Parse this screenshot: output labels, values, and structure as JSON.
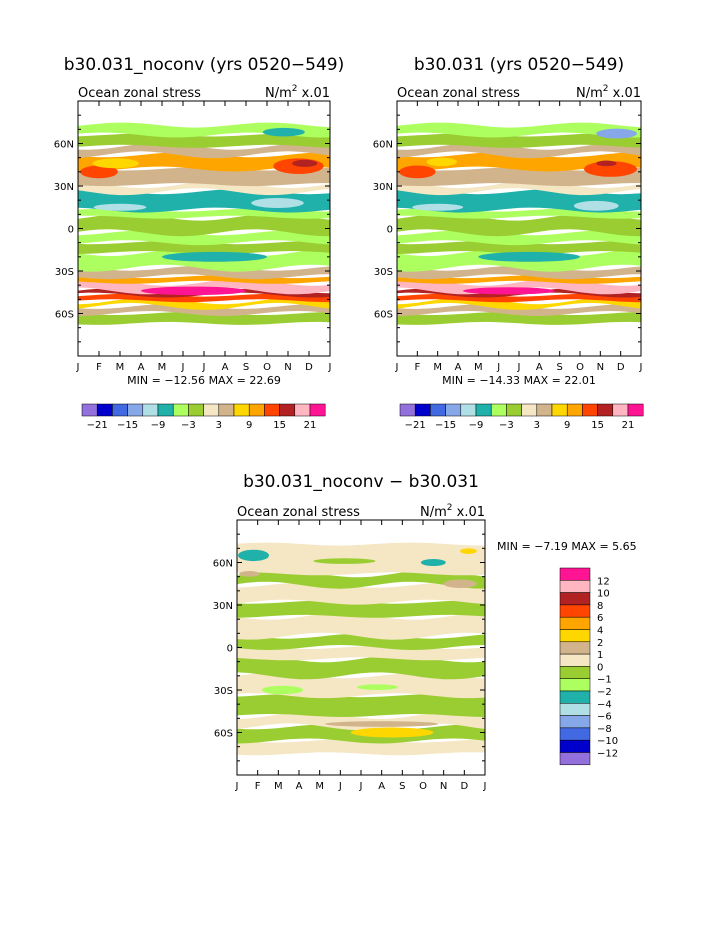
{
  "chart_data": [
    {
      "type": "heatmap",
      "title": "b30.031_noconv (yrs 0520−549)",
      "subtitle": "Ocean zonal stress",
      "units_base": "N/m",
      "units_exp": "2",
      "units_scale": "x.01",
      "x_ticks": [
        "J",
        "F",
        "M",
        "A",
        "M",
        "J",
        "J",
        "A",
        "S",
        "O",
        "N",
        "D",
        "J"
      ],
      "y_ticks": [
        "60N",
        "30N",
        "0",
        "30S",
        "60S"
      ],
      "y_tick_values": [
        60,
        30,
        0,
        -30,
        -60
      ],
      "ylim": [
        -90,
        90
      ],
      "xlim": [
        0,
        12
      ],
      "min_label": "MIN =",
      "min_value": "−12.56",
      "max_label": "MAX =",
      "max_value": "22.69",
      "colorbar_labels": [
        "−21",
        "−15",
        "−9",
        "−3",
        "3",
        "9",
        "15",
        "21"
      ],
      "colorbar_colors": [
        "#9370DB",
        "#0000CD",
        "#4169E1",
        "#87A8E8",
        "#B0E0E6",
        "#20B2AA",
        "#ADFF5F",
        "#9ACD32",
        "#F5E6C4",
        "#D2B48C",
        "#FFD700",
        "#FFA500",
        "#FF4500",
        "#B22222",
        "#FFB6C1",
        "#FF1493"
      ],
      "bands": [
        {
          "lat": [
            -67,
            -60
          ],
          "color": "#9ACD32"
        },
        {
          "lat": [
            -60,
            -55
          ],
          "color": "#D2B48C"
        },
        {
          "lat": [
            -55,
            -51
          ],
          "color": "#FFD700"
        },
        {
          "lat": [
            -51,
            -47
          ],
          "color": "#FF4500"
        },
        {
          "lat": [
            -47,
            -44
          ],
          "color": "#B22222"
        },
        {
          "lat": [
            -44,
            -38
          ],
          "color": "#FFB6C1"
        },
        {
          "lat": [
            -38,
            -34
          ],
          "color": "#FFA500"
        },
        {
          "lat": [
            -34,
            -28
          ],
          "color": "#D2B48C"
        },
        {
          "lat": [
            -28,
            -17
          ],
          "color": "#ADFF5F"
        },
        {
          "lat": [
            -17,
            -10
          ],
          "color": "#9ACD32"
        },
        {
          "lat": [
            -10,
            -3
          ],
          "color": "#ADFF5F"
        },
        {
          "lat": [
            -3,
            8
          ],
          "color": "#9ACD32"
        },
        {
          "lat": [
            8,
            13
          ],
          "color": "#ADFF5F"
        },
        {
          "lat": [
            13,
            26
          ],
          "color": "#20B2AA"
        },
        {
          "lat": [
            26,
            31
          ],
          "color": "#F5E6C4"
        },
        {
          "lat": [
            31,
            42
          ],
          "color": "#D2B48C"
        },
        {
          "lat": [
            42,
            52
          ],
          "color": "#FFA500"
        },
        {
          "lat": [
            52,
            58
          ],
          "color": "#D2B48C"
        },
        {
          "lat": [
            58,
            66
          ],
          "color": "#9ACD32"
        },
        {
          "lat": [
            66,
            73
          ],
          "color": "#ADFF5F"
        }
      ],
      "features": [
        {
          "month": 5.5,
          "lat": -44,
          "w": 5,
          "h": 6,
          "color": "#FF1493"
        },
        {
          "month": 1.0,
          "lat": 40,
          "w": 1.8,
          "h": 9,
          "color": "#FF4500"
        },
        {
          "month": 1.8,
          "lat": 46,
          "w": 2.2,
          "h": 7,
          "color": "#FFD700"
        },
        {
          "month": 10.5,
          "lat": 44,
          "w": 2.4,
          "h": 11,
          "color": "#FF4500"
        },
        {
          "month": 10.8,
          "lat": 46,
          "w": 1.2,
          "h": 5,
          "color": "#B22222"
        },
        {
          "month": 9.8,
          "lat": 68,
          "w": 2.0,
          "h": 6,
          "color": "#20B2AA"
        },
        {
          "month": 9.5,
          "lat": 18,
          "w": 2.5,
          "h": 7,
          "color": "#B0E0E6"
        },
        {
          "month": 6.5,
          "lat": -20,
          "w": 5.0,
          "h": 7,
          "color": "#20B2AA"
        },
        {
          "month": 2.0,
          "lat": 15,
          "w": 2.5,
          "h": 5,
          "color": "#B0E0E6"
        }
      ]
    },
    {
      "type": "heatmap",
      "title": "b30.031 (yrs 0520−549)",
      "subtitle": "Ocean zonal stress",
      "units_base": "N/m",
      "units_exp": "2",
      "units_scale": "x.01",
      "x_ticks": [
        "J",
        "F",
        "M",
        "A",
        "M",
        "J",
        "J",
        "A",
        "S",
        "O",
        "N",
        "D",
        "J"
      ],
      "y_ticks": [
        "60N",
        "30N",
        "0",
        "30S",
        "60S"
      ],
      "y_tick_values": [
        60,
        30,
        0,
        -30,
        -60
      ],
      "ylim": [
        -90,
        90
      ],
      "xlim": [
        0,
        12
      ],
      "min_label": "MIN =",
      "min_value": "−14.33",
      "max_label": "MAX =",
      "max_value": "22.01",
      "colorbar_labels": [
        "−21",
        "−15",
        "−9",
        "−3",
        "3",
        "9",
        "15",
        "21"
      ],
      "colorbar_colors": [
        "#9370DB",
        "#0000CD",
        "#4169E1",
        "#87A8E8",
        "#B0E0E6",
        "#20B2AA",
        "#ADFF5F",
        "#9ACD32",
        "#F5E6C4",
        "#D2B48C",
        "#FFD700",
        "#FFA500",
        "#FF4500",
        "#B22222",
        "#FFB6C1",
        "#FF1493"
      ],
      "bands": [
        {
          "lat": [
            -67,
            -60
          ],
          "color": "#9ACD32"
        },
        {
          "lat": [
            -60,
            -55
          ],
          "color": "#D2B48C"
        },
        {
          "lat": [
            -55,
            -51
          ],
          "color": "#FFD700"
        },
        {
          "lat": [
            -51,
            -47
          ],
          "color": "#FF4500"
        },
        {
          "lat": [
            -47,
            -44
          ],
          "color": "#B22222"
        },
        {
          "lat": [
            -44,
            -38
          ],
          "color": "#FFB6C1"
        },
        {
          "lat": [
            -38,
            -34
          ],
          "color": "#FFA500"
        },
        {
          "lat": [
            -34,
            -28
          ],
          "color": "#D2B48C"
        },
        {
          "lat": [
            -28,
            -17
          ],
          "color": "#ADFF5F"
        },
        {
          "lat": [
            -17,
            -10
          ],
          "color": "#9ACD32"
        },
        {
          "lat": [
            -10,
            -3
          ],
          "color": "#ADFF5F"
        },
        {
          "lat": [
            -3,
            8
          ],
          "color": "#9ACD32"
        },
        {
          "lat": [
            8,
            13
          ],
          "color": "#ADFF5F"
        },
        {
          "lat": [
            13,
            26
          ],
          "color": "#20B2AA"
        },
        {
          "lat": [
            26,
            31
          ],
          "color": "#F5E6C4"
        },
        {
          "lat": [
            31,
            42
          ],
          "color": "#D2B48C"
        },
        {
          "lat": [
            42,
            52
          ],
          "color": "#FFA500"
        },
        {
          "lat": [
            52,
            58
          ],
          "color": "#D2B48C"
        },
        {
          "lat": [
            58,
            66
          ],
          "color": "#9ACD32"
        },
        {
          "lat": [
            66,
            73
          ],
          "color": "#ADFF5F"
        }
      ],
      "features": [
        {
          "month": 5.5,
          "lat": -44,
          "w": 4.5,
          "h": 5,
          "color": "#FF1493"
        },
        {
          "month": 1.0,
          "lat": 40,
          "w": 1.8,
          "h": 9,
          "color": "#FF4500"
        },
        {
          "month": 2.2,
          "lat": 47,
          "w": 1.5,
          "h": 6,
          "color": "#FFD700"
        },
        {
          "month": 10.5,
          "lat": 42,
          "w": 2.6,
          "h": 11,
          "color": "#FF4500"
        },
        {
          "month": 10.3,
          "lat": 46,
          "w": 1.0,
          "h": 4,
          "color": "#B22222"
        },
        {
          "month": 10.8,
          "lat": 67,
          "w": 2.0,
          "h": 7,
          "color": "#87A8E8"
        },
        {
          "month": 9.8,
          "lat": 16,
          "w": 2.2,
          "h": 7,
          "color": "#B0E0E6"
        },
        {
          "month": 6.5,
          "lat": -20,
          "w": 5.0,
          "h": 7,
          "color": "#20B2AA"
        },
        {
          "month": 2.0,
          "lat": 15,
          "w": 2.5,
          "h": 5,
          "color": "#B0E0E6"
        }
      ]
    },
    {
      "type": "heatmap",
      "title": "b30.031_noconv − b30.031",
      "subtitle": "Ocean zonal stress",
      "units_base": "N/m",
      "units_exp": "2",
      "units_scale": "x.01",
      "x_ticks": [
        "J",
        "F",
        "M",
        "A",
        "M",
        "J",
        "J",
        "A",
        "S",
        "O",
        "N",
        "D",
        "J"
      ],
      "y_ticks": [
        "60N",
        "30N",
        "0",
        "30S",
        "60S"
      ],
      "y_tick_values": [
        60,
        30,
        0,
        -30,
        -60
      ],
      "ylim": [
        -90,
        90
      ],
      "xlim": [
        0,
        12
      ],
      "min_label": "MIN =",
      "min_value": "−7.19",
      "max_label": "MAX =",
      "max_value": "5.65",
      "colorbar_labels": [
        "12",
        "10",
        "8",
        "6",
        "4",
        "2",
        "1",
        "0",
        "−1",
        "−2",
        "−4",
        "−6",
        "−8",
        "−10",
        "−12"
      ],
      "colorbar_colors": [
        "#FF1493",
        "#FFB6C1",
        "#B22222",
        "#FF4500",
        "#FFA500",
        "#FFD700",
        "#D2B48C",
        "#F5E6C4",
        "#9ACD32",
        "#ADFF5F",
        "#20B2AA",
        "#B0E0E6",
        "#87A8E8",
        "#4169E1",
        "#0000CD",
        "#9370DB"
      ],
      "bands": [
        {
          "lat": [
            -75,
            -66
          ],
          "color": "#F5E6C4"
        },
        {
          "lat": [
            -66,
            -56
          ],
          "color": "#9ACD32"
        },
        {
          "lat": [
            -56,
            -48
          ],
          "color": "#F5E6C4"
        },
        {
          "lat": [
            -48,
            -34
          ],
          "color": "#9ACD32"
        },
        {
          "lat": [
            -34,
            -20
          ],
          "color": "#F5E6C4"
        },
        {
          "lat": [
            -20,
            -8
          ],
          "color": "#9ACD32"
        },
        {
          "lat": [
            -8,
            0
          ],
          "color": "#F5E6C4"
        },
        {
          "lat": [
            0,
            8
          ],
          "color": "#9ACD32"
        },
        {
          "lat": [
            8,
            22
          ],
          "color": "#F5E6C4"
        },
        {
          "lat": [
            22,
            32
          ],
          "color": "#9ACD32"
        },
        {
          "lat": [
            32,
            44
          ],
          "color": "#F5E6C4"
        },
        {
          "lat": [
            44,
            52
          ],
          "color": "#9ACD32"
        },
        {
          "lat": [
            52,
            73
          ],
          "color": "#F5E6C4"
        }
      ],
      "features": [
        {
          "month": 7.5,
          "lat": -60,
          "w": 4.0,
          "h": 7,
          "color": "#FFD700"
        },
        {
          "month": 7.0,
          "lat": -54,
          "w": 5.5,
          "h": 4,
          "color": "#D2B48C"
        },
        {
          "month": 0.8,
          "lat": 65,
          "w": 1.5,
          "h": 8,
          "color": "#20B2AA"
        },
        {
          "month": 0.6,
          "lat": 52,
          "w": 1.0,
          "h": 4,
          "color": "#D2B48C"
        },
        {
          "month": 5.2,
          "lat": 61,
          "w": 3.0,
          "h": 4,
          "color": "#9ACD32"
        },
        {
          "month": 9.5,
          "lat": 60,
          "w": 1.2,
          "h": 5,
          "color": "#20B2AA"
        },
        {
          "month": 10.8,
          "lat": 45,
          "w": 1.6,
          "h": 6,
          "color": "#D2B48C"
        },
        {
          "month": 11.2,
          "lat": 68,
          "w": 0.8,
          "h": 4,
          "color": "#FFD700"
        },
        {
          "month": 2.2,
          "lat": -30,
          "w": 2.0,
          "h": 6,
          "color": "#ADFF5F"
        },
        {
          "month": 6.8,
          "lat": -28,
          "w": 2.0,
          "h": 4,
          "color": "#ADFF5F"
        }
      ]
    }
  ]
}
